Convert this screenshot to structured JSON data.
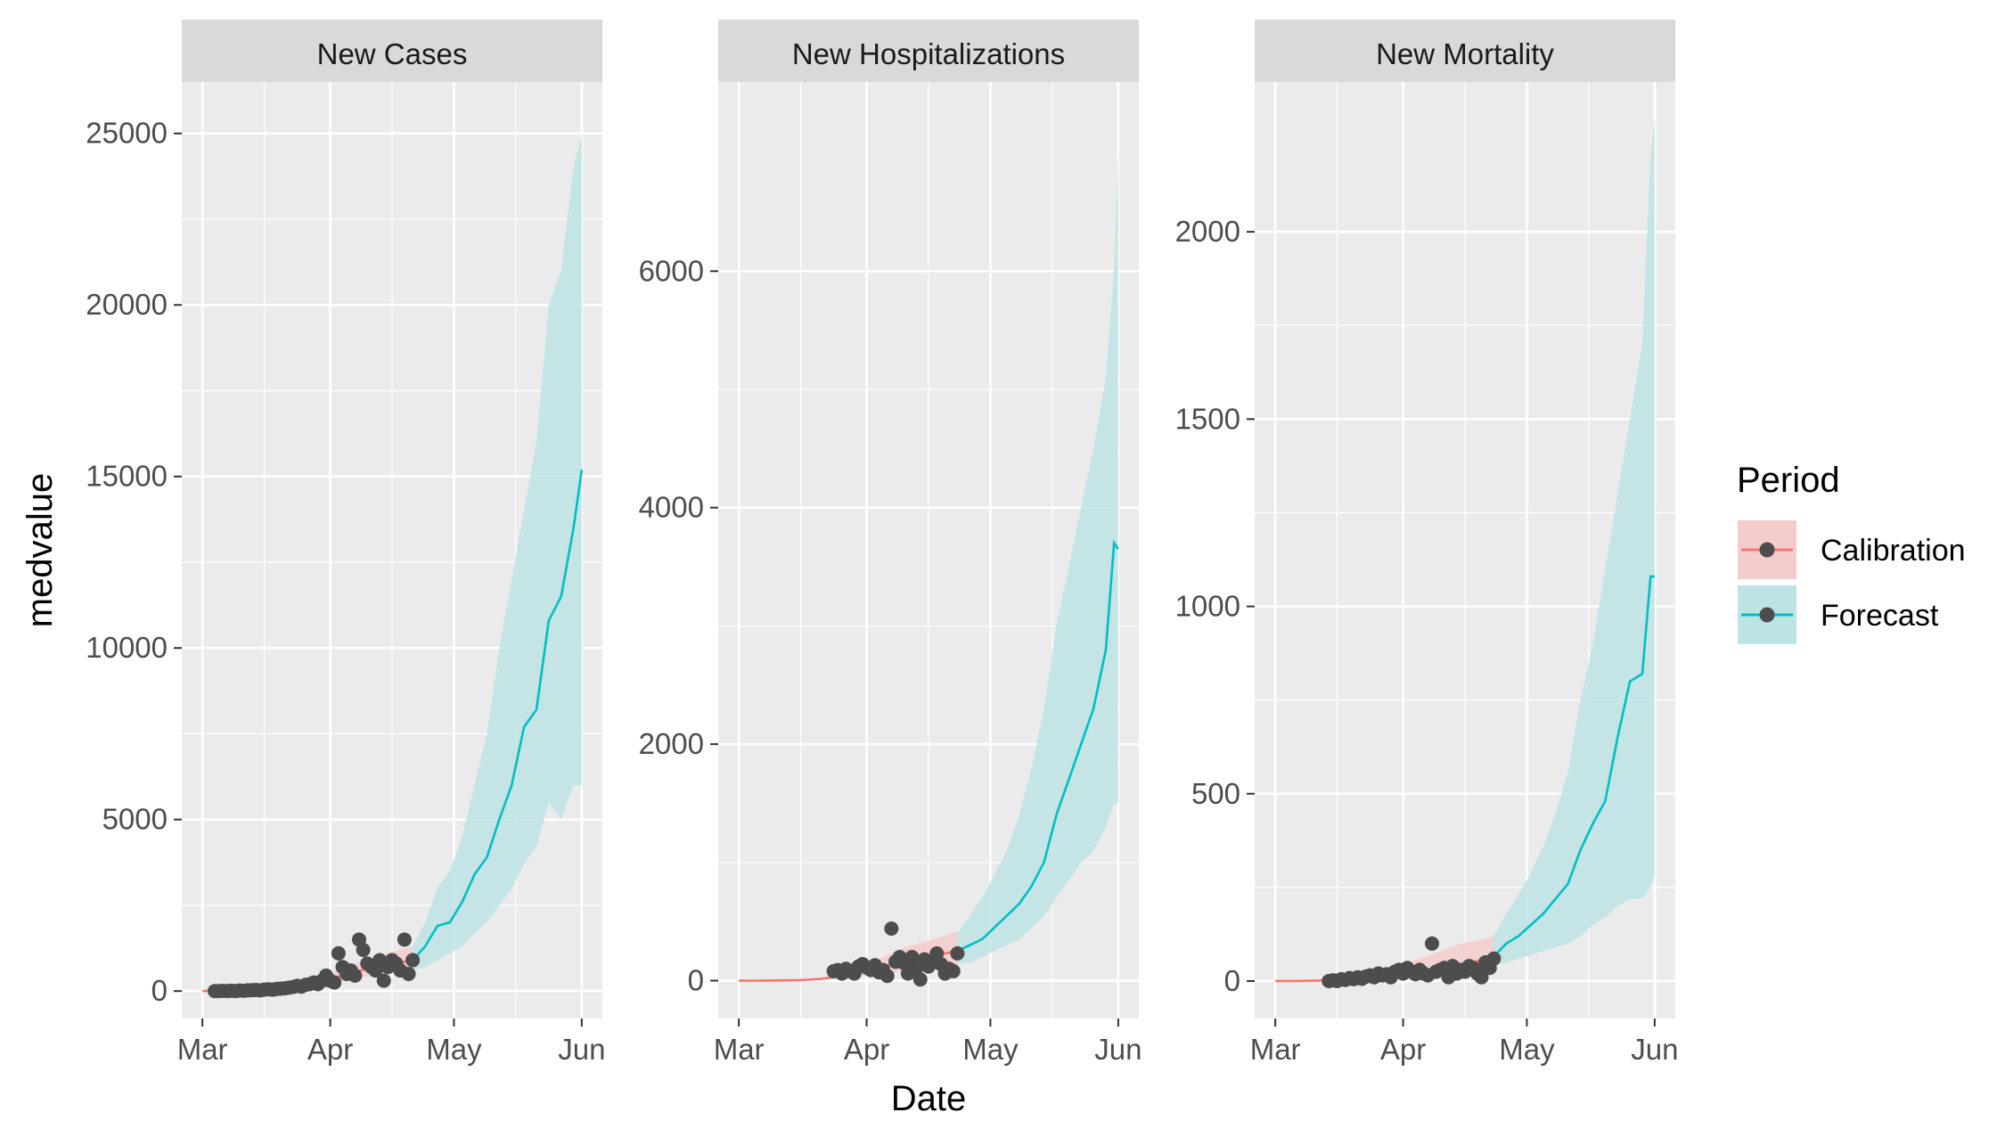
{
  "chart_data": {
    "type": "line",
    "xlabel": "Date",
    "ylabel": "medvalue",
    "x_tick_labels": [
      "Mar",
      "Apr",
      "May",
      "Jun"
    ],
    "colors": {
      "calibration_line": "#f8766d",
      "calibration_band": "#f4cccb",
      "forecast_line": "#00bfc4",
      "forecast_band": "#bde3e5",
      "observed_point": "#4d4d4d",
      "panel_background": "#ebebeb",
      "grid_line": "#ffffff",
      "strip_background": "#d9d9d9"
    },
    "legend": {
      "title": "Period",
      "placement": "right",
      "entries": [
        "Calibration",
        "Forecast"
      ]
    },
    "panels": [
      {
        "title": "New Cases",
        "ylim": [
          -800,
          26500
        ],
        "y_ticks": [
          0,
          5000,
          10000,
          15000,
          20000,
          25000
        ],
        "y_tick_labels": [
          "0",
          "5000",
          "10000",
          "15000",
          "20000",
          "25000"
        ],
        "calibration": {
          "x": [
            "2020-03-01",
            "2020-03-04",
            "2020-03-07",
            "2020-03-10",
            "2020-03-13",
            "2020-03-16",
            "2020-03-19",
            "2020-03-22",
            "2020-03-25",
            "2020-03-28",
            "2020-03-31",
            "2020-04-03",
            "2020-04-06",
            "2020-04-09",
            "2020-04-12",
            "2020-04-15",
            "2020-04-18",
            "2020-04-21"
          ],
          "median": [
            0,
            10,
            20,
            30,
            45,
            65,
            90,
            130,
            180,
            240,
            320,
            420,
            530,
            620,
            700,
            770,
            830,
            900
          ],
          "lower": [
            0,
            5,
            10,
            15,
            25,
            40,
            55,
            80,
            110,
            150,
            200,
            260,
            330,
            400,
            450,
            500,
            540,
            600
          ],
          "upper": [
            0,
            15,
            30,
            50,
            70,
            100,
            140,
            200,
            270,
            360,
            470,
            600,
            750,
            900,
            1000,
            1100,
            1200,
            1300
          ]
        },
        "forecast": {
          "x": [
            "2020-04-21",
            "2020-04-24",
            "2020-04-27",
            "2020-04-30",
            "2020-05-03",
            "2020-05-06",
            "2020-05-09",
            "2020-05-12",
            "2020-05-15",
            "2020-05-18",
            "2020-05-21",
            "2020-05-24",
            "2020-05-27",
            "2020-05-30",
            "2020-06-01"
          ],
          "median": [
            900,
            1300,
            1900,
            2000,
            2600,
            3400,
            3900,
            5000,
            6000,
            7700,
            8200,
            10800,
            11500,
            13500,
            15200
          ],
          "lower": [
            600,
            700,
            900,
            1100,
            1300,
            1700,
            2000,
            2500,
            3000,
            3700,
            4200,
            5500,
            5000,
            6000,
            6000
          ],
          "upper": [
            1300,
            2000,
            3000,
            3500,
            4500,
            6000,
            7500,
            10000,
            12000,
            14000,
            16000,
            20000,
            21000,
            24000,
            25000
          ]
        },
        "observed": {
          "x": [
            "2020-03-04",
            "2020-03-05",
            "2020-03-06",
            "2020-03-07",
            "2020-03-08",
            "2020-03-09",
            "2020-03-10",
            "2020-03-11",
            "2020-03-12",
            "2020-03-13",
            "2020-03-14",
            "2020-03-15",
            "2020-03-16",
            "2020-03-17",
            "2020-03-18",
            "2020-03-19",
            "2020-03-20",
            "2020-03-21",
            "2020-03-22",
            "2020-03-23",
            "2020-03-24",
            "2020-03-25",
            "2020-03-26",
            "2020-03-27",
            "2020-03-28",
            "2020-03-29",
            "2020-03-30",
            "2020-03-31",
            "2020-04-01",
            "2020-04-02",
            "2020-04-03",
            "2020-04-04",
            "2020-04-05",
            "2020-04-06",
            "2020-04-07",
            "2020-04-08",
            "2020-04-09",
            "2020-04-10",
            "2020-04-11",
            "2020-04-12",
            "2020-04-13",
            "2020-04-14",
            "2020-04-15",
            "2020-04-16",
            "2020-04-17",
            "2020-04-18",
            "2020-04-19",
            "2020-04-20",
            "2020-04-21"
          ],
          "y": [
            0,
            0,
            5,
            0,
            10,
            0,
            15,
            10,
            20,
            25,
            30,
            20,
            40,
            50,
            40,
            60,
            70,
            80,
            100,
            120,
            150,
            130,
            180,
            200,
            250,
            200,
            300,
            450,
            300,
            250,
            1100,
            700,
            500,
            600,
            450,
            1500,
            1200,
            800,
            700,
            600,
            900,
            300,
            700,
            900,
            800,
            600,
            1500,
            500,
            900
          ]
        }
      },
      {
        "title": "New Hospitalizations",
        "ylim": [
          -320,
          7600
        ],
        "y_ticks": [
          0,
          2000,
          4000,
          6000
        ],
        "y_tick_labels": [
          "0",
          "2000",
          "4000",
          "6000"
        ],
        "calibration": {
          "x": [
            "2020-03-01",
            "2020-03-06",
            "2020-03-11",
            "2020-03-16",
            "2020-03-21",
            "2020-03-26",
            "2020-03-31",
            "2020-04-05",
            "2020-04-10",
            "2020-04-15",
            "2020-04-20",
            "2020-04-23"
          ],
          "median": [
            0,
            0,
            2,
            5,
            15,
            40,
            80,
            120,
            160,
            190,
            230,
            250
          ],
          "lower": [
            0,
            0,
            1,
            3,
            8,
            20,
            40,
            60,
            80,
            100,
            120,
            140
          ],
          "upper": [
            0,
            1,
            4,
            10,
            25,
            60,
            130,
            200,
            280,
            330,
            380,
            420
          ]
        },
        "forecast": {
          "x": [
            "2020-04-23",
            "2020-04-26",
            "2020-04-29",
            "2020-05-02",
            "2020-05-05",
            "2020-05-08",
            "2020-05-11",
            "2020-05-14",
            "2020-05-17",
            "2020-05-20",
            "2020-05-23",
            "2020-05-26",
            "2020-05-29",
            "2020-05-31",
            "2020-06-01"
          ],
          "median": [
            250,
            300,
            350,
            450,
            550,
            650,
            800,
            1000,
            1400,
            1700,
            2000,
            2300,
            2800,
            3700,
            3650
          ],
          "lower": [
            150,
            150,
            200,
            250,
            300,
            350,
            450,
            550,
            700,
            850,
            1000,
            1100,
            1300,
            1500,
            1500
          ],
          "upper": [
            400,
            550,
            700,
            900,
            1100,
            1400,
            1800,
            2300,
            3000,
            3500,
            4000,
            4500,
            5100,
            6000,
            7000
          ]
        },
        "observed": {
          "x": [
            "2020-03-24",
            "2020-03-25",
            "2020-03-26",
            "2020-03-27",
            "2020-03-28",
            "2020-03-29",
            "2020-03-30",
            "2020-03-31",
            "2020-04-01",
            "2020-04-02",
            "2020-04-03",
            "2020-04-04",
            "2020-04-05",
            "2020-04-06",
            "2020-04-07",
            "2020-04-08",
            "2020-04-09",
            "2020-04-10",
            "2020-04-11",
            "2020-04-12",
            "2020-04-13",
            "2020-04-14",
            "2020-04-15",
            "2020-04-16",
            "2020-04-17",
            "2020-04-18",
            "2020-04-19",
            "2020-04-20",
            "2020-04-21",
            "2020-04-22",
            "2020-04-23"
          ],
          "y": [
            80,
            90,
            60,
            100,
            80,
            60,
            120,
            140,
            110,
            90,
            130,
            70,
            90,
            40,
            440,
            160,
            200,
            150,
            60,
            200,
            100,
            10,
            180,
            120,
            160,
            230,
            140,
            60,
            100,
            80,
            230
          ]
        }
      },
      {
        "title": "New Mortality",
        "ylim": [
          -100,
          2400
        ],
        "y_ticks": [
          0,
          500,
          1000,
          1500,
          2000
        ],
        "y_tick_labels": [
          "0",
          "500",
          "1000",
          "1500",
          "2000"
        ],
        "calibration": {
          "x": [
            "2020-03-01",
            "2020-03-06",
            "2020-03-11",
            "2020-03-16",
            "2020-03-21",
            "2020-03-26",
            "2020-03-31",
            "2020-04-05",
            "2020-04-10",
            "2020-04-15",
            "2020-04-20",
            "2020-04-23"
          ],
          "median": [
            0,
            0,
            1,
            3,
            6,
            10,
            15,
            25,
            35,
            45,
            55,
            65
          ],
          "lower": [
            0,
            0,
            0,
            1,
            3,
            5,
            8,
            12,
            18,
            22,
            28,
            35
          ],
          "upper": [
            0,
            1,
            3,
            8,
            15,
            25,
            40,
            60,
            80,
            100,
            110,
            120
          ]
        },
        "forecast": {
          "x": [
            "2020-04-23",
            "2020-04-26",
            "2020-04-29",
            "2020-05-02",
            "2020-05-05",
            "2020-05-08",
            "2020-05-11",
            "2020-05-14",
            "2020-05-17",
            "2020-05-20",
            "2020-05-23",
            "2020-05-26",
            "2020-05-29",
            "2020-05-31",
            "2020-06-01"
          ],
          "median": [
            65,
            100,
            120,
            150,
            180,
            220,
            260,
            350,
            420,
            480,
            650,
            800,
            820,
            1080,
            1080
          ],
          "lower": [
            40,
            50,
            60,
            70,
            80,
            90,
            100,
            120,
            150,
            170,
            200,
            220,
            220,
            250,
            280
          ],
          "upper": [
            120,
            180,
            230,
            290,
            360,
            450,
            560,
            750,
            900,
            1100,
            1300,
            1500,
            1700,
            2200,
            2300
          ]
        },
        "observed": {
          "x": [
            "2020-03-14",
            "2020-03-15",
            "2020-03-16",
            "2020-03-17",
            "2020-03-18",
            "2020-03-19",
            "2020-03-20",
            "2020-03-21",
            "2020-03-22",
            "2020-03-23",
            "2020-03-24",
            "2020-03-25",
            "2020-03-26",
            "2020-03-27",
            "2020-03-28",
            "2020-03-29",
            "2020-03-30",
            "2020-03-31",
            "2020-04-01",
            "2020-04-02",
            "2020-04-03",
            "2020-04-04",
            "2020-04-05",
            "2020-04-06",
            "2020-04-07",
            "2020-04-08",
            "2020-04-09",
            "2020-04-10",
            "2020-04-11",
            "2020-04-12",
            "2020-04-13",
            "2020-04-14",
            "2020-04-15",
            "2020-04-16",
            "2020-04-17",
            "2020-04-18",
            "2020-04-19",
            "2020-04-20",
            "2020-04-21",
            "2020-04-22",
            "2020-04-23"
          ],
          "y": [
            0,
            2,
            0,
            5,
            3,
            8,
            5,
            10,
            6,
            12,
            15,
            10,
            20,
            15,
            18,
            10,
            25,
            30,
            20,
            35,
            25,
            18,
            30,
            20,
            15,
            100,
            25,
            30,
            35,
            10,
            40,
            20,
            30,
            25,
            40,
            35,
            20,
            10,
            50,
            35,
            60
          ]
        }
      }
    ]
  }
}
